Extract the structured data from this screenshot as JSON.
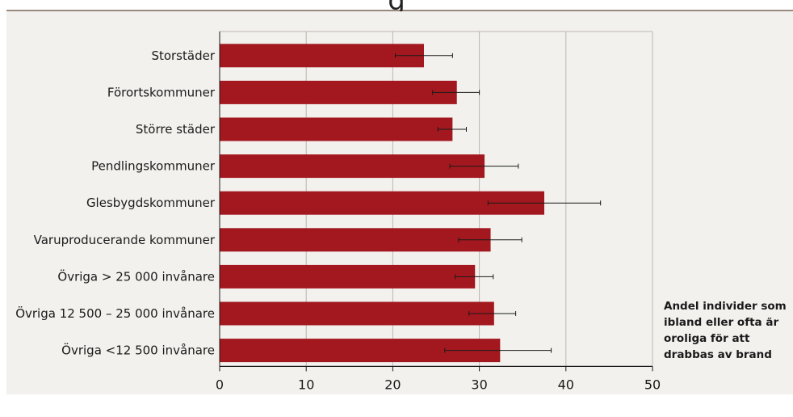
{
  "header": {
    "title_fragment": "g"
  },
  "colors": {
    "bar": "#a3181e",
    "panel": "#f2f1ee",
    "grid": "#bdb5ad",
    "rule": "#9a8a7e"
  },
  "side_note": {
    "lines": [
      "Andel individer som",
      "ibland eller ofta är",
      "oroliga för att",
      "drabbas av brand"
    ]
  },
  "chart_data": {
    "type": "bar",
    "orientation": "horizontal",
    "categories": [
      "Storstäder",
      "Förortskommuner",
      "Större städer",
      "Pendlingskommuner",
      "Glesbygdskommuner",
      "Varuproducerande kommuner",
      "Övriga > 25 000 invånare",
      "Övriga 12 500 – 25 000 invånare",
      "Övriga <12 500 invånare"
    ],
    "values": [
      23.6,
      27.4,
      26.9,
      30.6,
      37.5,
      31.3,
      29.5,
      31.7,
      32.4
    ],
    "error_low": [
      20.3,
      24.6,
      25.2,
      26.6,
      31.0,
      27.6,
      27.2,
      28.8,
      26.0
    ],
    "error_high": [
      26.9,
      30.0,
      28.5,
      34.5,
      44.0,
      34.9,
      31.6,
      34.2,
      38.3
    ],
    "xlim": [
      0,
      50
    ],
    "xticks": [
      0,
      10,
      20,
      30,
      40,
      50
    ],
    "xlabel": "Andel individer som ibland eller ofta är oroliga för att drabbas av brand",
    "ylabel": "",
    "grid": true
  }
}
